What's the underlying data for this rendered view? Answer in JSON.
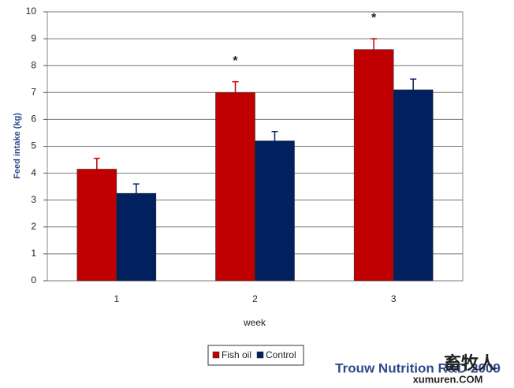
{
  "chart_data": {
    "type": "bar",
    "x_label": "week",
    "y_label": "Feed intake (kg)",
    "categories": [
      "1",
      "2",
      "3"
    ],
    "series": [
      {
        "name": "Fish oil",
        "color": "#c00000",
        "values": [
          4.15,
          7.0,
          8.6
        ],
        "errors": [
          0.4,
          0.4,
          0.4
        ],
        "markers": [
          null,
          "*",
          "*"
        ]
      },
      {
        "name": "Control",
        "color": "#002060",
        "values": [
          3.25,
          5.2,
          7.1
        ],
        "errors": [
          0.35,
          0.35,
          0.4
        ]
      }
    ],
    "ylim": [
      0,
      10
    ],
    "yticks": [
      0,
      1,
      2,
      3,
      4,
      5,
      6,
      7,
      8,
      9,
      10
    ],
    "grid": true,
    "source": "Trouw Nutrition R&D 2009",
    "watermark": [
      "畜牧人",
      "xumuren.COM"
    ]
  }
}
